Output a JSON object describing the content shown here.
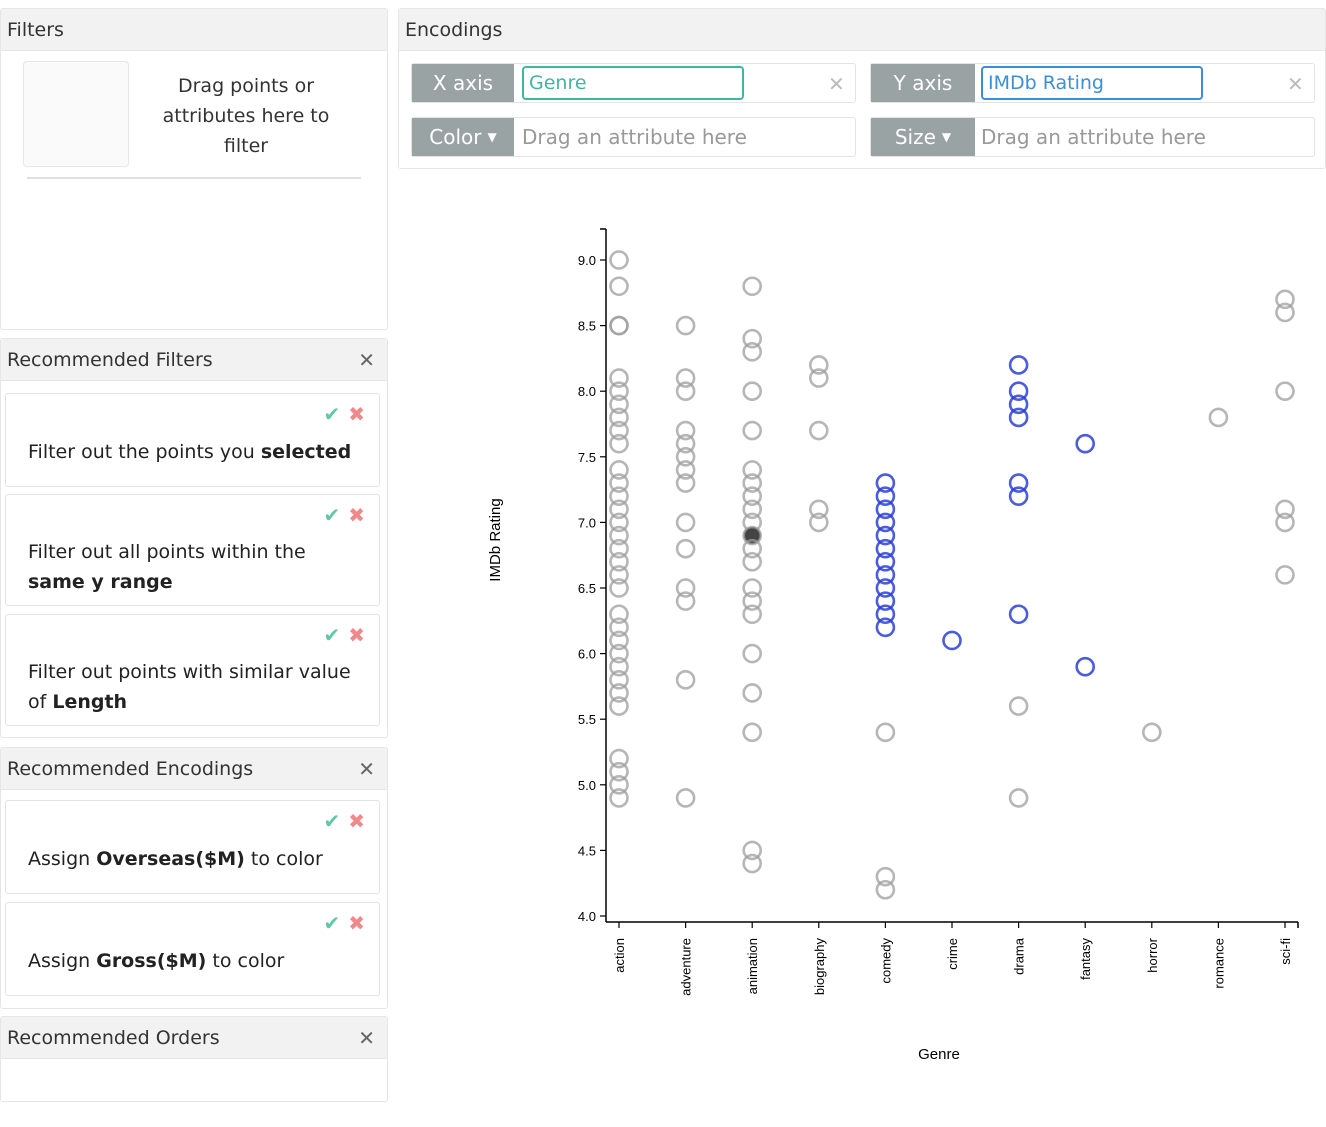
{
  "filters": {
    "title": "Filters",
    "drop_text": "Drag points or attributes here to filter"
  },
  "recommended_filters": {
    "title": "Recommended Filters",
    "close": "✕",
    "items": [
      {
        "pre": "Filter out the points you ",
        "bold": "selected",
        "post": ""
      },
      {
        "pre": "Filter out all points within the ",
        "bold": "same y range",
        "post": ""
      },
      {
        "pre": "Filter out points with similar value of ",
        "bold": "Length",
        "post": ""
      }
    ]
  },
  "recommended_encodings": {
    "title": "Recommended Encodings",
    "close": "✕",
    "items": [
      {
        "pre": "Assign ",
        "bold": "Overseas($M)",
        "post": " to color"
      },
      {
        "pre": "Assign ",
        "bold": "Gross($M)",
        "post": " to color"
      }
    ]
  },
  "recommended_orders": {
    "title": "Recommended Orders",
    "close": "✕"
  },
  "actions": {
    "accept": "✔",
    "reject": "✖"
  },
  "encodings": {
    "title": "Encodings",
    "x_axis": {
      "label": "X axis",
      "value": "Genre",
      "clear": "✕",
      "color": "#3fb6a0"
    },
    "y_axis": {
      "label": "Y axis",
      "value": "IMDb Rating",
      "clear": "✕",
      "color": "#3b8ed8"
    },
    "color": {
      "label": "Color",
      "placeholder": "Drag an attribute here"
    },
    "size": {
      "label": "Size",
      "placeholder": "Drag an attribute here"
    }
  },
  "chart_data": {
    "type": "scatter",
    "xlabel": "Genre",
    "ylabel": "IMDb Rating",
    "ylim": [
      4.0,
      9.0
    ],
    "yticks": [
      "4.0",
      "4.5",
      "5.0",
      "5.5",
      "6.0",
      "6.5",
      "7.0",
      "7.5",
      "8.0",
      "8.5",
      "9.0"
    ],
    "categories": [
      "action",
      "adventure",
      "animation",
      "biography",
      "comedy",
      "crime",
      "drama",
      "fantasy",
      "horror",
      "romance",
      "sci-fi"
    ],
    "selected_color": "#2b3fd6",
    "unselected_color": "#9e9e9e",
    "points": {
      "action": [
        9.0,
        8.8,
        8.5,
        8.5,
        8.1,
        8.0,
        7.9,
        7.8,
        7.7,
        7.6,
        7.4,
        7.3,
        7.2,
        7.1,
        7.0,
        6.9,
        6.8,
        6.7,
        6.6,
        6.5,
        6.3,
        6.2,
        6.1,
        6.0,
        5.9,
        5.8,
        5.7,
        5.6,
        5.2,
        5.1,
        5.0,
        4.9
      ],
      "adventure": [
        8.5,
        8.1,
        8.0,
        7.7,
        7.6,
        7.5,
        7.4,
        7.3,
        7.0,
        6.8,
        6.5,
        6.4,
        5.8,
        4.9
      ],
      "animation": [
        8.8,
        8.4,
        8.3,
        8.0,
        7.7,
        7.4,
        7.3,
        7.2,
        7.1,
        7.0,
        6.9,
        6.8,
        6.7,
        6.5,
        6.4,
        6.3,
        6.0,
        5.7,
        5.4,
        4.5,
        4.4
      ],
      "biography": [
        8.2,
        8.1,
        7.7,
        7.1,
        7.0
      ],
      "comedy": [
        7.3,
        7.2,
        7.1,
        7.0,
        6.9,
        6.8,
        6.7,
        6.6,
        6.5,
        6.4,
        6.3,
        6.2,
        5.4,
        4.3,
        4.2
      ],
      "crime": [
        6.1
      ],
      "drama": [
        8.2,
        8.0,
        7.9,
        7.8,
        7.3,
        7.2,
        6.3,
        5.6,
        4.9
      ],
      "fantasy": [
        7.6,
        5.9
      ],
      "horror": [
        5.4
      ],
      "romance": [
        7.8
      ],
      "sci-fi": [
        8.7,
        8.6,
        8.0,
        7.1,
        7.0,
        6.6
      ]
    },
    "selected_points": {
      "comedy": [
        7.3,
        7.2,
        7.1,
        7.0,
        6.9,
        6.8,
        6.7,
        6.6,
        6.5,
        6.4,
        6.3,
        6.2
      ],
      "crime": [
        6.1
      ],
      "drama": [
        8.2,
        8.0,
        7.9,
        7.8,
        7.3,
        7.2,
        6.3
      ],
      "fantasy": [
        7.6,
        5.9
      ]
    },
    "filled_points": {
      "animation": [
        6.9
      ]
    }
  }
}
